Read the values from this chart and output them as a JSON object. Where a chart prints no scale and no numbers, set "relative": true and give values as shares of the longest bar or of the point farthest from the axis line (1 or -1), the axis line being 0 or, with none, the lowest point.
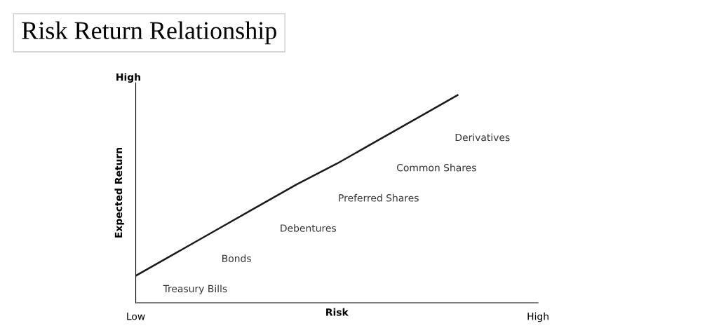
{
  "chart_data": {
    "type": "line",
    "title": "Risk Return Relationship",
    "xlabel": "Risk",
    "ylabel": "Expected Return",
    "relative": true,
    "categories": [
      "Low",
      null,
      null,
      null,
      null,
      null,
      null,
      null,
      null,
      null,
      "High"
    ],
    "series": [
      {
        "color": "#1a1a1a",
        "values": [
          0.13,
          0.24,
          0.35,
          0.46,
          0.57,
          0.67,
          0.78,
          0.89,
          1.0,
          null,
          null
        ]
      }
    ],
    "annotations": [
      "High",
      "Treasury Bills",
      "Bonds",
      "Debentures",
      "Preferred Shares",
      "Common Shares",
      "Derivatives"
    ],
    "grid": false,
    "legend": false,
    "marker": "none",
    "line_style": "solid"
  }
}
